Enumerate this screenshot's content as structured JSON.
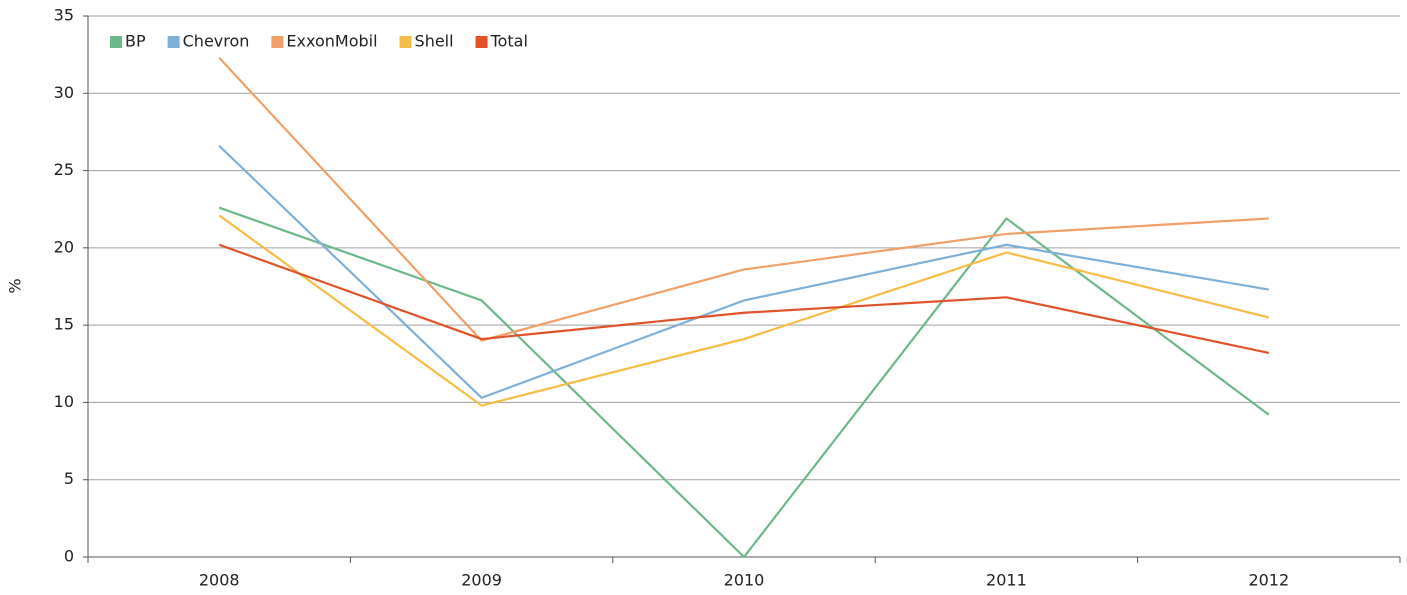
{
  "chart_data": {
    "type": "line",
    "y_label": "%",
    "categories": [
      "2008",
      "2009",
      "2010",
      "2011",
      "2012"
    ],
    "series": [
      {
        "name": "BP",
        "color": "#6db88a",
        "values": [
          22.6,
          16.6,
          0,
          21.9,
          9.2
        ]
      },
      {
        "name": "Chevron",
        "color": "#7fb0d8",
        "values": [
          26.6,
          10.3,
          16.6,
          20.2,
          17.3
        ]
      },
      {
        "name": "ExxonMobil",
        "color": "#f0a068",
        "values": [
          32.3,
          14.0,
          18.6,
          20.9,
          21.9
        ]
      },
      {
        "name": "Shell",
        "color": "#f5bd45",
        "values": [
          22.1,
          9.8,
          14.1,
          19.7,
          15.5
        ]
      },
      {
        "name": "Total",
        "color": "#e0522a",
        "values": [
          20.2,
          14.1,
          15.8,
          16.8,
          13.2
        ]
      }
    ],
    "ylim": [
      0,
      35
    ],
    "yticks": [
      0,
      5,
      10,
      15,
      20,
      25,
      30,
      35
    ],
    "grid": true,
    "legend": "top-left"
  }
}
